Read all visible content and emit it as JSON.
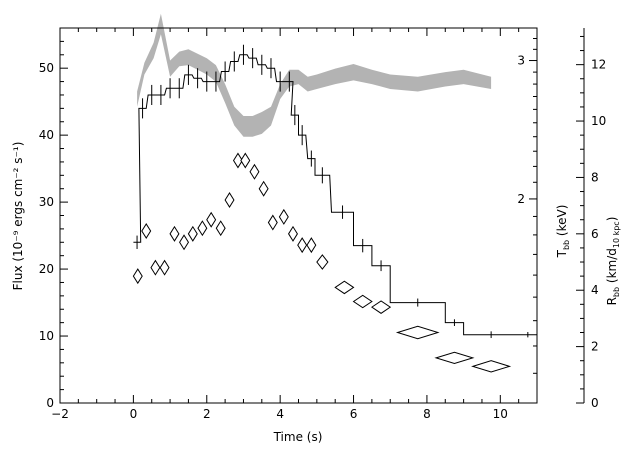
{
  "chart_data": {
    "type": "line",
    "xlabel": "Time (s)",
    "xlim": [
      -2,
      11
    ],
    "xticks": [
      -2,
      0,
      2,
      4,
      6,
      8,
      10
    ],
    "left_axis": {
      "label": "Flux (10⁻⁹ ergs cm⁻² s⁻¹)",
      "ylim": [
        0,
        56
      ],
      "ticks": [
        0,
        10,
        20,
        30,
        40,
        50
      ]
    },
    "temperature_axis": {
      "label": "T_bb (keV)",
      "label_main": "T",
      "label_sub": "bb",
      "label_suffix": " (keV)",
      "scale": "log",
      "ylim": [
        1.1,
        3.3
      ],
      "ticks": [
        2,
        3
      ]
    },
    "radius_axis": {
      "label": "R_bb (km/d_10 kpc)",
      "label_main": "R",
      "label_sub": "bb",
      "label_mid": " (km/d",
      "label_sub2": "10 kpc",
      "label_suffix": ")",
      "ylim": [
        0,
        13.3
      ],
      "ticks": [
        0,
        2,
        4,
        6,
        8,
        10,
        12
      ]
    },
    "series": [
      {
        "name": "Flux",
        "axis": "left",
        "style": "histogram",
        "points": [
          {
            "x": 0.1,
            "y": 24.0,
            "xerr": 0.1,
            "yerr": 1.0
          },
          {
            "x": 0.25,
            "y": 44.0,
            "xerr": 0.1,
            "yerr": 1.5
          },
          {
            "x": 0.5,
            "y": 46.0,
            "xerr": 0.1,
            "yerr": 1.5
          },
          {
            "x": 0.75,
            "y": 46.0,
            "xerr": 0.1,
            "yerr": 1.5
          },
          {
            "x": 1.0,
            "y": 47.0,
            "xerr": 0.1,
            "yerr": 1.5
          },
          {
            "x": 1.25,
            "y": 47.0,
            "xerr": 0.1,
            "yerr": 1.5
          },
          {
            "x": 1.5,
            "y": 49.0,
            "xerr": 0.1,
            "yerr": 1.5
          },
          {
            "x": 1.75,
            "y": 48.5,
            "xerr": 0.1,
            "yerr": 1.5
          },
          {
            "x": 2.0,
            "y": 48.0,
            "xerr": 0.1,
            "yerr": 1.5
          },
          {
            "x": 2.25,
            "y": 48.0,
            "xerr": 0.1,
            "yerr": 1.5
          },
          {
            "x": 2.5,
            "y": 49.5,
            "xerr": 0.1,
            "yerr": 1.5
          },
          {
            "x": 2.75,
            "y": 51.0,
            "xerr": 0.1,
            "yerr": 1.5
          },
          {
            "x": 3.0,
            "y": 52.0,
            "xerr": 0.1,
            "yerr": 1.5
          },
          {
            "x": 3.25,
            "y": 51.5,
            "xerr": 0.1,
            "yerr": 1.5
          },
          {
            "x": 3.5,
            "y": 50.5,
            "xerr": 0.1,
            "yerr": 1.5
          },
          {
            "x": 3.75,
            "y": 50.0,
            "xerr": 0.1,
            "yerr": 1.5
          },
          {
            "x": 4.0,
            "y": 48.0,
            "xerr": 0.1,
            "yerr": 1.5
          },
          {
            "x": 4.25,
            "y": 48.0,
            "xerr": 0.1,
            "yerr": 1.5
          },
          {
            "x": 4.4,
            "y": 43.0,
            "xerr": 0.1,
            "yerr": 1.5
          },
          {
            "x": 4.6,
            "y": 40.0,
            "xerr": 0.1,
            "yerr": 1.5
          },
          {
            "x": 4.85,
            "y": 36.5,
            "xerr": 0.1,
            "yerr": 1.2
          },
          {
            "x": 5.15,
            "y": 34.0,
            "xerr": 0.2,
            "yerr": 1.2
          },
          {
            "x": 5.7,
            "y": 28.5,
            "xerr": 0.3,
            "yerr": 1.0
          },
          {
            "x": 6.25,
            "y": 23.5,
            "xerr": 0.25,
            "yerr": 1.0
          },
          {
            "x": 6.75,
            "y": 20.5,
            "xerr": 0.25,
            "yerr": 0.8
          },
          {
            "x": 7.75,
            "y": 15.0,
            "xerr": 0.75,
            "yerr": 0.6
          },
          {
            "x": 8.75,
            "y": 12.0,
            "xerr": 0.25,
            "yerr": 0.5
          },
          {
            "x": 9.75,
            "y": 10.2,
            "xerr": 0.75,
            "yerr": 0.5
          },
          {
            "x": 10.75,
            "y": 10.2,
            "xerr": 0.25,
            "yerr": 0.4
          }
        ]
      },
      {
        "name": "Temperature",
        "axis": "temperature",
        "style": "band",
        "color": "#b3b3b3",
        "x": [
          0.1,
          0.3,
          0.55,
          0.75,
          1.0,
          1.25,
          1.5,
          1.75,
          2.0,
          2.25,
          2.5,
          2.75,
          3.0,
          3.25,
          3.5,
          3.75,
          4.0,
          4.25,
          4.5,
          4.75,
          5.0,
          5.5,
          6.0,
          6.5,
          7.0,
          7.75,
          8.5,
          9.0,
          9.75
        ],
        "low": [
          2.62,
          2.88,
          3.02,
          3.24,
          2.86,
          2.95,
          2.96,
          2.92,
          2.88,
          2.82,
          2.65,
          2.48,
          2.4,
          2.4,
          2.42,
          2.48,
          2.68,
          2.78,
          2.8,
          2.74,
          2.76,
          2.8,
          2.83,
          2.8,
          2.76,
          2.74,
          2.78,
          2.8,
          2.76
        ],
        "high": [
          2.74,
          2.98,
          3.16,
          3.44,
          3.0,
          3.08,
          3.1,
          3.06,
          3.02,
          2.96,
          2.8,
          2.62,
          2.55,
          2.55,
          2.58,
          2.62,
          2.8,
          2.92,
          2.92,
          2.86,
          2.88,
          2.93,
          2.97,
          2.92,
          2.88,
          2.86,
          2.9,
          2.92,
          2.86
        ]
      },
      {
        "name": "Radius",
        "axis": "radius",
        "style": "diamond",
        "points": [
          {
            "x": 0.12,
            "y": 4.5,
            "xerr": 0.12,
            "yerr": 0.25
          },
          {
            "x": 0.35,
            "y": 6.1,
            "xerr": 0.12,
            "yerr": 0.25
          },
          {
            "x": 0.6,
            "y": 4.8,
            "xerr": 0.12,
            "yerr": 0.25
          },
          {
            "x": 0.85,
            "y": 4.8,
            "xerr": 0.12,
            "yerr": 0.25
          },
          {
            "x": 1.12,
            "y": 6.0,
            "xerr": 0.12,
            "yerr": 0.25
          },
          {
            "x": 1.38,
            "y": 5.7,
            "xerr": 0.12,
            "yerr": 0.25
          },
          {
            "x": 1.62,
            "y": 6.0,
            "xerr": 0.12,
            "yerr": 0.25
          },
          {
            "x": 1.88,
            "y": 6.2,
            "xerr": 0.12,
            "yerr": 0.25
          },
          {
            "x": 2.12,
            "y": 6.5,
            "xerr": 0.12,
            "yerr": 0.25
          },
          {
            "x": 2.38,
            "y": 6.2,
            "xerr": 0.12,
            "yerr": 0.25
          },
          {
            "x": 2.62,
            "y": 7.2,
            "xerr": 0.12,
            "yerr": 0.25
          },
          {
            "x": 2.85,
            "y": 8.6,
            "xerr": 0.12,
            "yerr": 0.25
          },
          {
            "x": 3.05,
            "y": 8.6,
            "xerr": 0.12,
            "yerr": 0.25
          },
          {
            "x": 3.3,
            "y": 8.2,
            "xerr": 0.12,
            "yerr": 0.25
          },
          {
            "x": 3.55,
            "y": 7.6,
            "xerr": 0.12,
            "yerr": 0.25
          },
          {
            "x": 3.8,
            "y": 6.4,
            "xerr": 0.12,
            "yerr": 0.25
          },
          {
            "x": 4.1,
            "y": 6.6,
            "xerr": 0.12,
            "yerr": 0.25
          },
          {
            "x": 4.35,
            "y": 6.0,
            "xerr": 0.12,
            "yerr": 0.25
          },
          {
            "x": 4.6,
            "y": 5.6,
            "xerr": 0.12,
            "yerr": 0.25
          },
          {
            "x": 4.85,
            "y": 5.6,
            "xerr": 0.12,
            "yerr": 0.25
          },
          {
            "x": 5.15,
            "y": 5.0,
            "xerr": 0.15,
            "yerr": 0.25
          },
          {
            "x": 5.75,
            "y": 4.1,
            "xerr": 0.25,
            "yerr": 0.22
          },
          {
            "x": 6.25,
            "y": 3.6,
            "xerr": 0.25,
            "yerr": 0.22
          },
          {
            "x": 6.75,
            "y": 3.4,
            "xerr": 0.25,
            "yerr": 0.22
          },
          {
            "x": 7.75,
            "y": 2.5,
            "xerr": 0.55,
            "yerr": 0.22
          },
          {
            "x": 8.75,
            "y": 1.6,
            "xerr": 0.5,
            "yerr": 0.2
          },
          {
            "x": 9.75,
            "y": 1.3,
            "xerr": 0.5,
            "yerr": 0.2
          }
        ]
      }
    ]
  }
}
